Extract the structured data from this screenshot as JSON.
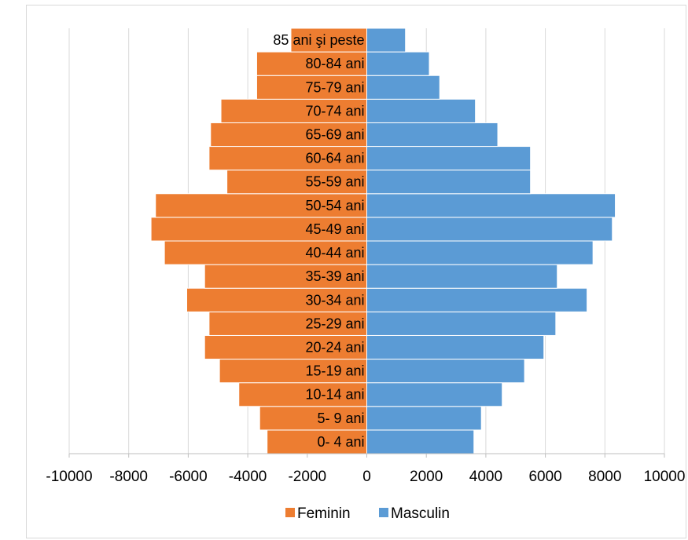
{
  "chart_data": {
    "type": "bar",
    "orientation": "horizontal",
    "subtype": "population-pyramid",
    "categories": [
      "0- 4 ani",
      "5- 9 ani",
      "10-14 ani",
      "15-19 ani",
      "20-24 ani",
      "25-29 ani",
      "30-34 ani",
      "35-39 ani",
      "40-44 ani",
      "45-49 ani",
      "50-54 ani",
      "55-59 ani",
      "60-64 ani",
      "65-69 ani",
      "70-74 ani",
      "75-79 ani",
      "80-84 ani",
      "85 ani şi peste"
    ],
    "series": [
      {
        "name": "Feminin",
        "color": "#ED7D31",
        "values": [
          -3350,
          -3600,
          -4300,
          -4950,
          -5450,
          -5300,
          -6050,
          -5450,
          -6800,
          -7250,
          -7100,
          -4700,
          -5300,
          -5250,
          -4900,
          -3700,
          -3700,
          -2550
        ]
      },
      {
        "name": "Masculin",
        "color": "#5B9BD5",
        "values": [
          3600,
          3850,
          4550,
          5300,
          5950,
          6350,
          7400,
          6400,
          7600,
          8250,
          8350,
          5500,
          5500,
          4400,
          3650,
          2450,
          2100,
          1300
        ]
      }
    ],
    "xlim": [
      -10000,
      10000
    ],
    "xticks": [
      -10000,
      -8000,
      -6000,
      -4000,
      -2000,
      0,
      2000,
      4000,
      6000,
      8000,
      10000
    ],
    "xtick_labels": [
      "-10000",
      "-8000",
      "-6000",
      "-4000",
      "-2000",
      "0",
      "2000",
      "4000",
      "6000",
      "8000",
      "10000"
    ],
    "grid": true,
    "legend_position": "bottom"
  }
}
